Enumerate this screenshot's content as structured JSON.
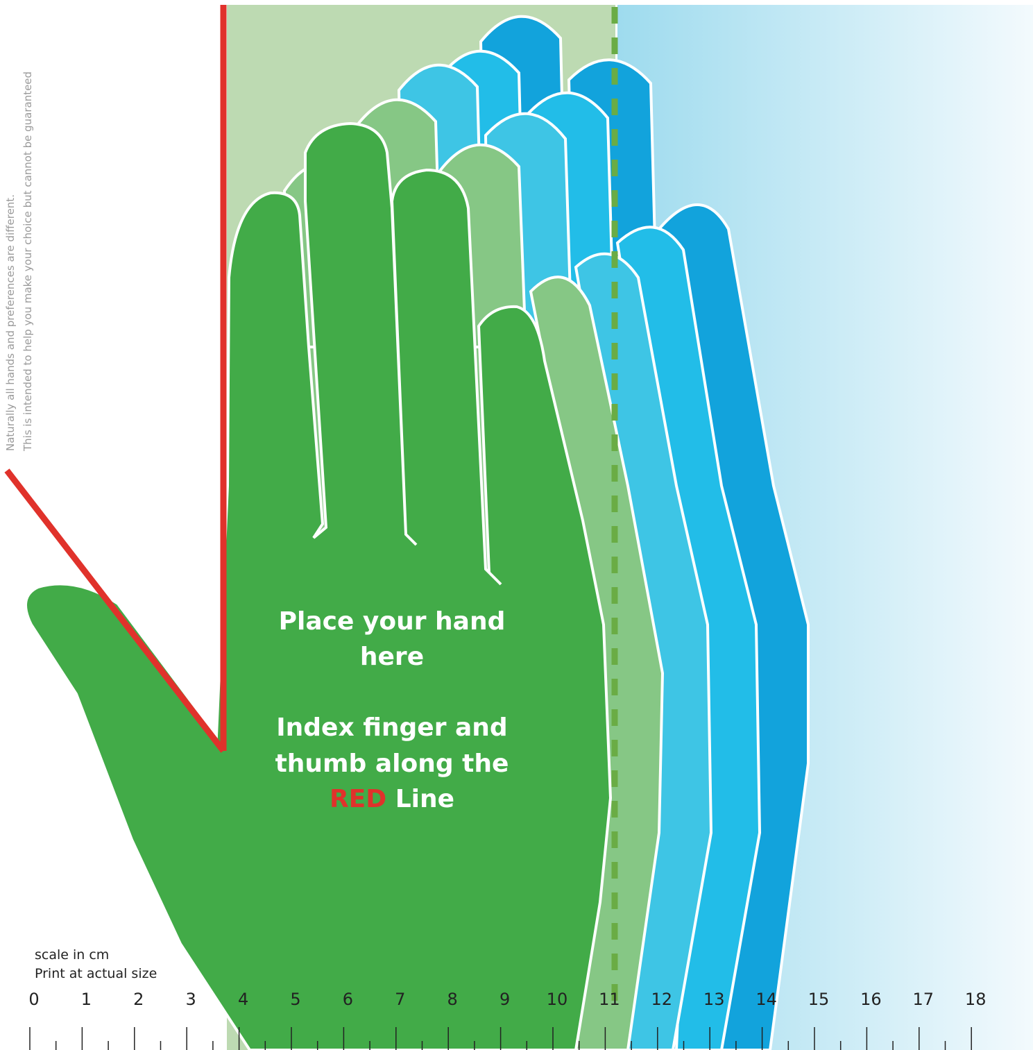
{
  "side_note": {
    "line1": "Naturally all hands and preferences are different.",
    "line2": "This is intended to help you make your choice but cannot be guaranteed"
  },
  "instructions": {
    "line1": "Place your hand",
    "line2": "here",
    "line3": "Index finger and",
    "line4": "thumb along the",
    "red_word": "RED",
    "line5_rest": "Line"
  },
  "scale_note": {
    "line1": "scale in cm",
    "line2": "Print at actual size"
  },
  "ruler": {
    "labels": [
      0,
      1,
      2,
      3,
      4,
      5,
      6,
      7,
      8,
      9,
      10,
      11,
      12,
      13,
      14,
      15,
      16,
      17,
      18
    ]
  }
}
